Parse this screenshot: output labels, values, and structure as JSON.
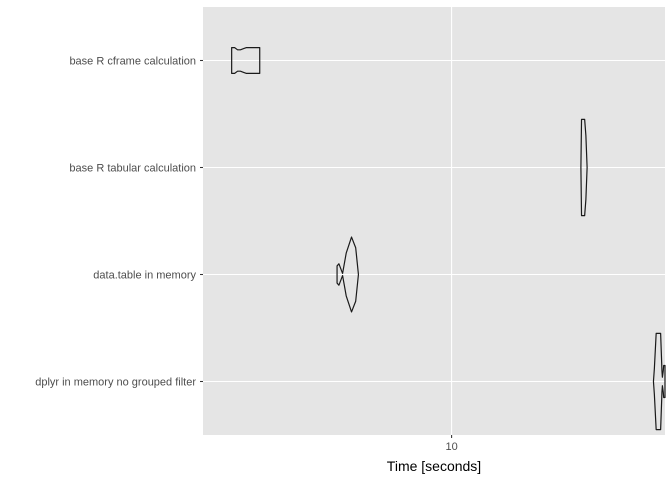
{
  "chart_data": {
    "type": "violin",
    "orientation": "horizontal",
    "xlabel": "Time [seconds]",
    "ylabel": "",
    "x_scale": "log10",
    "x_ticks": [
      10
    ],
    "x_tick_labels": [
      "10"
    ],
    "xlim": [
      3.3,
      25.9
    ],
    "grid": true,
    "legend": "none",
    "colors": {
      "panel": "#e5e5e5",
      "grid": "#ffffff",
      "outline": "#1a1a1a",
      "tick_text": "#4d4d4d",
      "title_text": "#000000"
    },
    "categories": [
      "base R cframe calculation",
      "base R tabular calculation",
      "data.table in memory",
      "dplyr in memory no grouped filter"
    ],
    "series": [
      {
        "category": "base R cframe calculation",
        "min": 3.75,
        "max": 4.25,
        "profile": [
          [
            3.75,
            0.12
          ],
          [
            3.8,
            0.12
          ],
          [
            3.85,
            0.1
          ],
          [
            3.9,
            0.1
          ],
          [
            3.95,
            0.11
          ],
          [
            4.0,
            0.12
          ],
          [
            4.05,
            0.12
          ],
          [
            4.1,
            0.12
          ],
          [
            4.15,
            0.12
          ],
          [
            4.2,
            0.12
          ],
          [
            4.25,
            0.12
          ]
        ]
      },
      {
        "category": "base R tabular calculation",
        "min": 17.8,
        "max": 18.3,
        "profile": [
          [
            17.8,
            0.0
          ],
          [
            17.85,
            0.45
          ],
          [
            17.9,
            0.45
          ],
          [
            18.0,
            0.45
          ],
          [
            18.1,
            0.45
          ],
          [
            18.2,
            0.3
          ],
          [
            18.3,
            0.0
          ]
        ]
      },
      {
        "category": "data.table in memory",
        "min": 6.0,
        "max": 6.6,
        "profile": [
          [
            6.0,
            0.08
          ],
          [
            6.05,
            0.1
          ],
          [
            6.15,
            0.01
          ],
          [
            6.25,
            0.2
          ],
          [
            6.4,
            0.35
          ],
          [
            6.52,
            0.25
          ],
          [
            6.6,
            0.0
          ]
        ]
      },
      {
        "category": "dplyr in memory no grouped filter",
        "min": 24.6,
        "max": 25.9,
        "profile": [
          [
            24.6,
            0.0
          ],
          [
            24.7,
            0.12
          ],
          [
            24.9,
            0.45
          ],
          [
            25.1,
            0.45
          ],
          [
            25.4,
            0.45
          ],
          [
            25.55,
            0.1
          ],
          [
            25.6,
            0.04
          ],
          [
            25.7,
            0.1
          ],
          [
            25.75,
            0.15
          ],
          [
            25.8,
            0.15
          ],
          [
            25.9,
            0.15
          ]
        ]
      }
    ]
  }
}
